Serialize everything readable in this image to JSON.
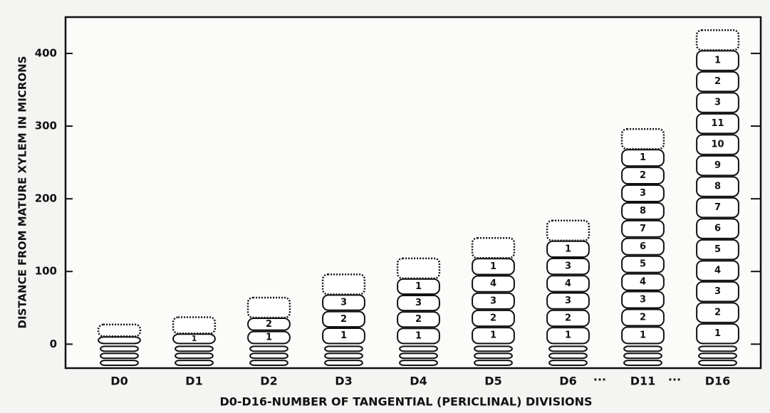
{
  "chart_data": {
    "type": "bar",
    "y_label": "DISTANCE FROM MATURE XYLEM IN MICRONS",
    "x_label": "D0-D16-NUMBER OF TANGENTIAL (PERICLINAL) DIVISIONS",
    "categories": [
      "D0",
      "D1",
      "D2",
      "D3",
      "D4",
      "D5",
      "D6",
      "D11",
      "D16"
    ],
    "values": [
      27,
      37,
      64,
      96,
      118,
      146,
      170,
      296,
      432
    ],
    "cell_labels": [
      [],
      [
        "1"
      ],
      [
        "1",
        "2"
      ],
      [
        "1",
        "2",
        "3"
      ],
      [
        "1",
        "2",
        "3",
        "1"
      ],
      [
        "1",
        "2",
        "3",
        "4",
        "1"
      ],
      [
        "1",
        "2",
        "3",
        "4",
        "3",
        "1"
      ],
      [
        "1",
        "2",
        "3",
        "4",
        "5",
        "6",
        "7",
        "8",
        "3",
        "2",
        "1"
      ],
      [
        "1",
        "2",
        "3",
        "4",
        "5",
        "6",
        "7",
        "8",
        "9",
        "10",
        "11",
        "3",
        "2",
        "1"
      ]
    ],
    "gap_marks": [
      "···",
      "···"
    ],
    "color": "#111111",
    "ylim": [
      -33,
      450
    ],
    "yticks": [
      0,
      100,
      200,
      300,
      400
    ],
    "grid": false
  }
}
